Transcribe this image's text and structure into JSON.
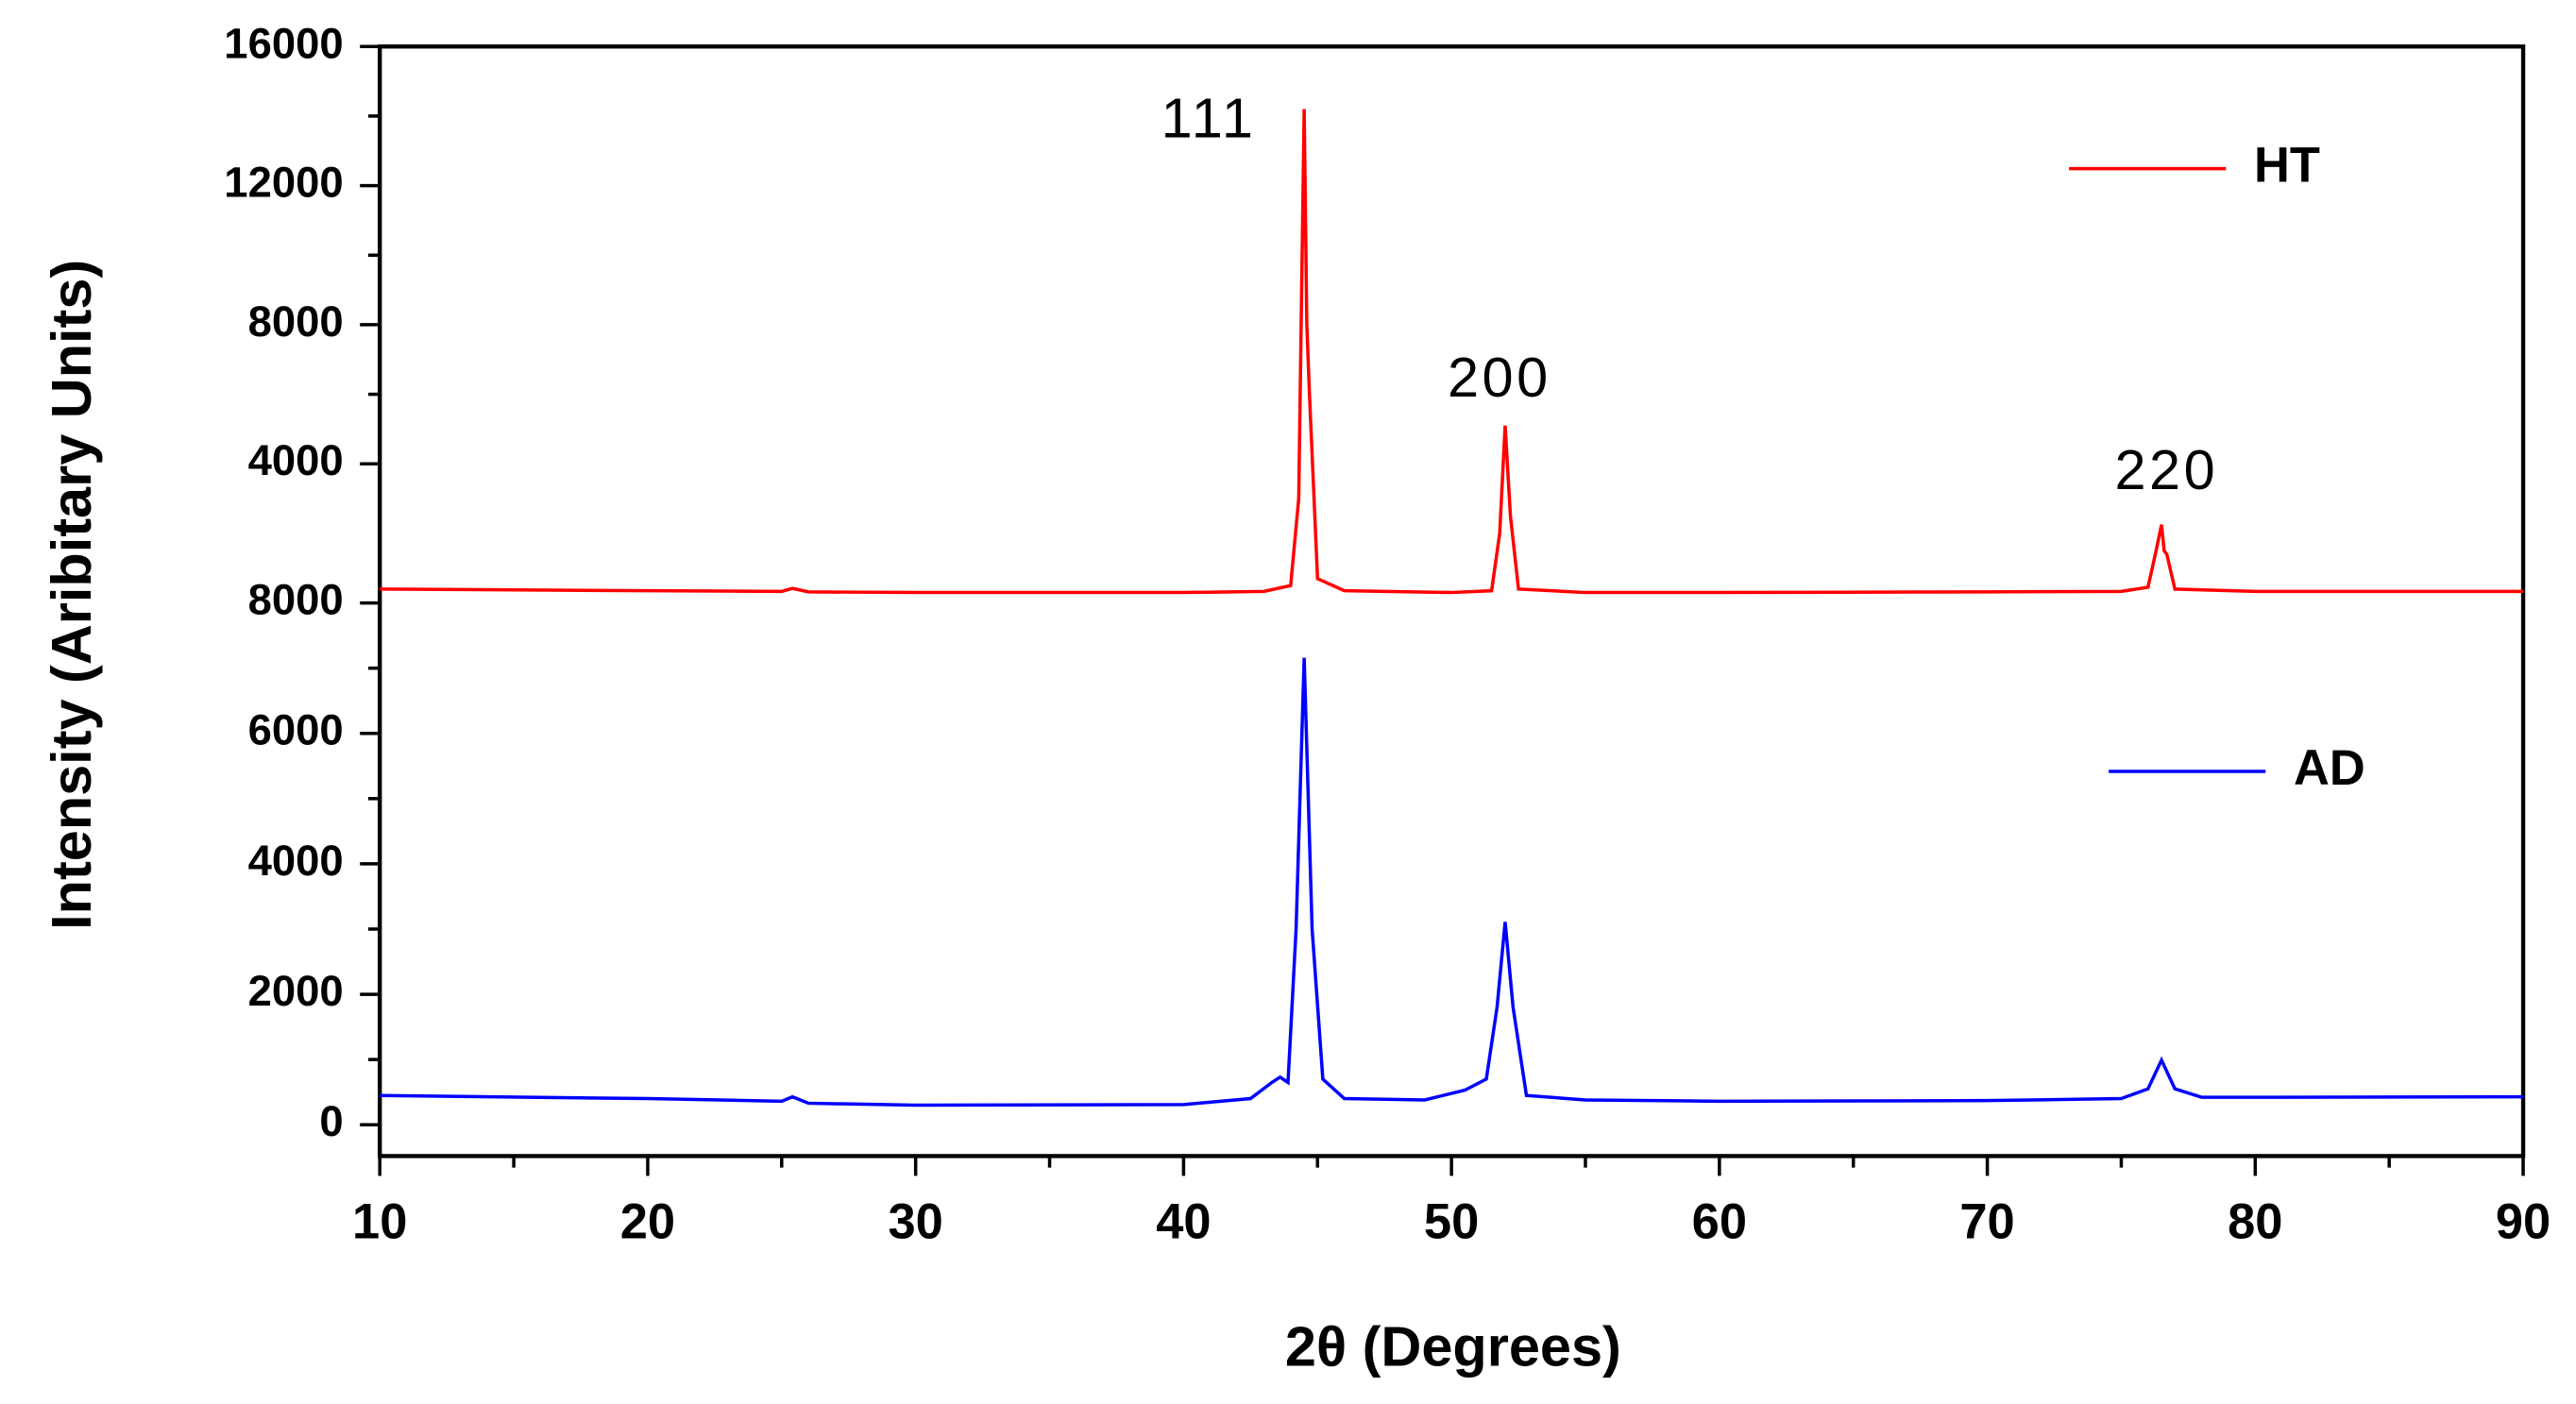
{
  "chart_data": [
    {
      "type": "line",
      "ylim": [
        0,
        16000
      ],
      "yticks": [
        4000,
        8000,
        12000,
        16000
      ],
      "annotations": [
        "111",
        "200",
        "220"
      ],
      "series": [
        {
          "name": "HT",
          "color": "#ff0000",
          "x": [
            10,
            20,
            25,
            25.4,
            26,
            30,
            40,
            43,
            44,
            44.3,
            44.5,
            44.6,
            44.7,
            45,
            46,
            50,
            51.5,
            51.8,
            52,
            52.2,
            52.5,
            55,
            60,
            70,
            75,
            76,
            76.3,
            76.5,
            76.6,
            76.7,
            77,
            80,
            90
          ],
          "values": [
            400,
            350,
            330,
            420,
            320,
            300,
            300,
            330,
            500,
            3000,
            14200,
            8000,
            6000,
            700,
            350,
            300,
            350,
            2000,
            5100,
            2500,
            400,
            300,
            300,
            320,
            330,
            450,
            1500,
            2250,
            1500,
            1400,
            400,
            330,
            330
          ]
        }
      ]
    },
    {
      "type": "line",
      "ylim": [
        -480,
        8000
      ],
      "yticks": [
        0,
        2000,
        4000,
        6000,
        8000
      ],
      "xlim": [
        10,
        90
      ],
      "xticks": [
        10,
        20,
        30,
        40,
        50,
        60,
        70,
        80,
        90
      ],
      "xlabel": "2θ (Degrees)",
      "ylabel": "Intensity (Aribitary Units)",
      "series": [
        {
          "name": "AD",
          "color": "#0000ff",
          "x": [
            10,
            20,
            25,
            25.4,
            26,
            30,
            40,
            42.5,
            43.3,
            43.6,
            43.9,
            44.2,
            44.5,
            44.8,
            45.2,
            46,
            49,
            50.5,
            51.3,
            51.7,
            52,
            52.3,
            52.8,
            55,
            60,
            70,
            75,
            76,
            76.5,
            77,
            78,
            80,
            90
          ],
          "values": [
            450,
            400,
            360,
            430,
            330,
            300,
            310,
            400,
            650,
            730,
            650,
            3000,
            7160,
            3000,
            700,
            400,
            380,
            530,
            700,
            1800,
            3110,
            1800,
            450,
            380,
            360,
            370,
            400,
            550,
            990,
            550,
            420,
            420,
            430
          ]
        }
      ]
    }
  ]
}
